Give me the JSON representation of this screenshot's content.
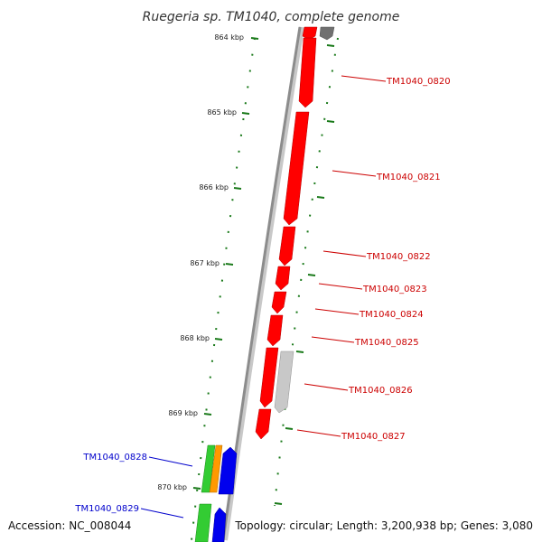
{
  "title": "Ruegeria sp. TM1040, complete genome",
  "footer": {
    "accession": "Accession: NC_008044",
    "topology": "Topology: circular; Length: 3,200,938 bp; Genes: 3,080"
  },
  "ticks": [
    "864 kbp",
    "865 kbp",
    "866 kbp",
    "867 kbp",
    "868 kbp",
    "869 kbp",
    "870 kbp"
  ],
  "genes": {
    "forward": [
      "TM1040_0820",
      "TM1040_0821",
      "TM1040_0822",
      "TM1040_0823",
      "TM1040_0824",
      "TM1040_0825",
      "TM1040_0826",
      "TM1040_0827"
    ],
    "reverse": [
      "TM1040_0828",
      "TM1040_0829"
    ]
  },
  "colors": {
    "forward_label": "#cc0000",
    "reverse_label": "#0000cc",
    "red_gene": "#ff0000",
    "grey_gene": "#c8c8c8",
    "dark_grey_gene": "#707070",
    "blue_gene": "#0000ee",
    "green_gene": "#33cc33",
    "orange_gene": "#ff9900",
    "backbone": "#8c8c8c",
    "ruler": "#1a7a1a"
  }
}
